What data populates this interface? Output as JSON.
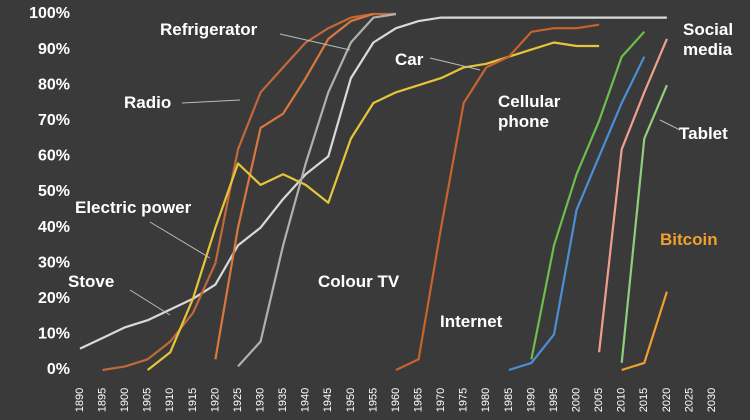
{
  "chart_data": {
    "type": "line",
    "x": [
      1890,
      1895,
      1900,
      1905,
      1910,
      1915,
      1920,
      1925,
      1930,
      1935,
      1940,
      1945,
      1950,
      1955,
      1960,
      1965,
      1970,
      1975,
      1980,
      1985,
      1990,
      1995,
      2000,
      2005,
      2010,
      2015,
      2020,
      2025
    ],
    "xticks": [
      1890,
      1895,
      1900,
      1905,
      1910,
      1915,
      1920,
      1925,
      1930,
      1935,
      1940,
      1945,
      1950,
      1955,
      1960,
      1965,
      1970,
      1975,
      1980,
      1985,
      1990,
      1995,
      2000,
      2005,
      2010,
      2015,
      2020,
      2025,
      2030
    ],
    "xlim": [
      1890,
      2030
    ],
    "ylim": [
      0,
      100
    ],
    "yticks": [
      {
        "value": 0,
        "label": "0%"
      },
      {
        "value": 10,
        "label": "10%"
      },
      {
        "value": 20,
        "label": "20%"
      },
      {
        "value": 30,
        "label": "30%"
      },
      {
        "value": 40,
        "label": "40%"
      },
      {
        "value": 50,
        "label": "50%"
      },
      {
        "value": 60,
        "label": "60%"
      },
      {
        "value": 70,
        "label": "70%"
      },
      {
        "value": 80,
        "label": "80%"
      },
      {
        "value": 90,
        "label": "90%"
      },
      {
        "value": 100,
        "label": "100%"
      }
    ],
    "grid": false,
    "series": [
      {
        "name": "Electric power",
        "color": "#d9d9d9",
        "values": [
          6,
          9,
          12,
          14,
          17,
          20,
          24,
          35,
          40,
          48,
          55,
          60,
          82,
          92,
          96,
          98,
          99,
          99,
          99,
          99,
          99,
          99,
          99,
          99,
          99,
          99,
          99,
          null
        ]
      },
      {
        "name": "Stove",
        "color": "#c0693a",
        "values": [
          null,
          0,
          1,
          3,
          8,
          16,
          30,
          62,
          78,
          85,
          92,
          96,
          99,
          100,
          100,
          null,
          null,
          null,
          null,
          null,
          null,
          null,
          null,
          null,
          null,
          null,
          null,
          null
        ]
      },
      {
        "name": "Radio",
        "color": "#d9783e",
        "values": [
          null,
          null,
          null,
          null,
          null,
          null,
          3,
          40,
          68,
          72,
          82,
          93,
          98,
          100,
          null,
          null,
          null,
          null,
          null,
          null,
          null,
          null,
          null,
          null,
          null,
          null,
          null,
          null
        ]
      },
      {
        "name": "Car",
        "color": "#e6c53a",
        "values": [
          null,
          null,
          null,
          0,
          5,
          20,
          40,
          58,
          52,
          55,
          52,
          47,
          65,
          75,
          78,
          80,
          82,
          85,
          86,
          88,
          90,
          92,
          91,
          91,
          null,
          null,
          null,
          null
        ]
      },
      {
        "name": "Refrigerator",
        "color": "#b0b0b0",
        "values": [
          null,
          null,
          null,
          null,
          null,
          null,
          null,
          1,
          8,
          35,
          58,
          78,
          92,
          99,
          100,
          null,
          null,
          null,
          null,
          null,
          null,
          null,
          null,
          null,
          null,
          null,
          null,
          null
        ]
      },
      {
        "name": "Colour TV",
        "color": "#c8622e",
        "values": [
          null,
          null,
          null,
          null,
          null,
          null,
          null,
          null,
          null,
          null,
          null,
          null,
          null,
          null,
          0,
          3,
          40,
          75,
          85,
          88,
          95,
          96,
          96,
          97,
          null,
          null,
          null,
          null
        ]
      },
      {
        "name": "Internet",
        "color": "#4a8fd6",
        "values": [
          null,
          null,
          null,
          null,
          null,
          null,
          null,
          null,
          null,
          null,
          null,
          null,
          null,
          null,
          null,
          null,
          null,
          null,
          null,
          0,
          2,
          10,
          45,
          60,
          75,
          88,
          null,
          null
        ]
      },
      {
        "name": "Cellular phone",
        "color": "#6cbf4a",
        "values": [
          null,
          null,
          null,
          null,
          null,
          null,
          null,
          null,
          null,
          null,
          null,
          null,
          null,
          null,
          null,
          null,
          null,
          null,
          null,
          null,
          3,
          35,
          55,
          70,
          88,
          95,
          null,
          null
        ]
      },
      {
        "name": "Social media",
        "color": "#f0a08a",
        "values": [
          null,
          null,
          null,
          null,
          null,
          null,
          null,
          null,
          null,
          null,
          null,
          null,
          null,
          null,
          null,
          null,
          null,
          null,
          null,
          null,
          null,
          null,
          null,
          5,
          62,
          78,
          93,
          null
        ]
      },
      {
        "name": "Tablet",
        "color": "#8fcf7a",
        "values": [
          null,
          null,
          null,
          null,
          null,
          null,
          null,
          null,
          null,
          null,
          null,
          null,
          null,
          null,
          null,
          null,
          null,
          null,
          null,
          null,
          null,
          null,
          null,
          null,
          2,
          65,
          80,
          null
        ]
      },
      {
        "name": "Bitcoin",
        "color": "#f0a030",
        "values": [
          null,
          null,
          null,
          null,
          null,
          null,
          null,
          null,
          null,
          null,
          null,
          null,
          null,
          null,
          null,
          null,
          null,
          null,
          null,
          null,
          null,
          null,
          null,
          null,
          0,
          2,
          22,
          null
        ]
      }
    ]
  }
}
